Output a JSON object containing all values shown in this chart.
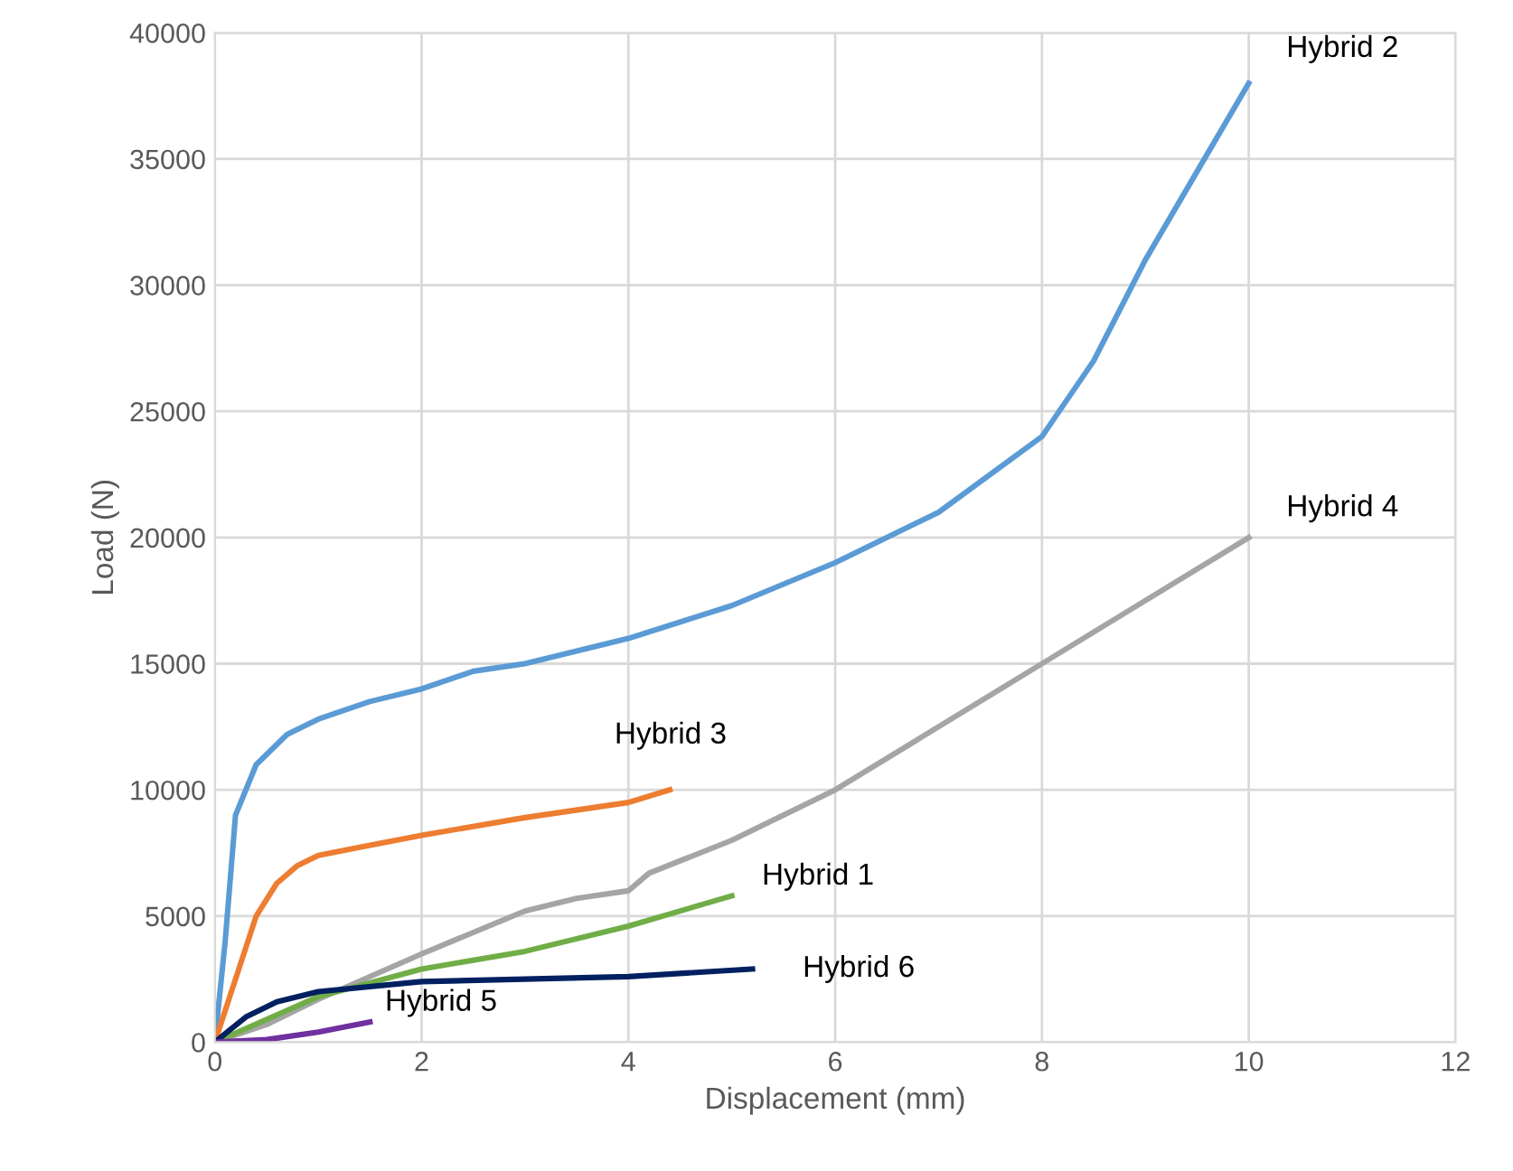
{
  "chart_data": {
    "type": "line",
    "xlabel": "Displacement (mm)",
    "ylabel": "Load (N)",
    "xlim": [
      0,
      12
    ],
    "xticks": [
      0,
      2,
      4,
      6,
      8,
      10,
      12
    ],
    "ylim": [
      0,
      40000
    ],
    "yticks": [
      0,
      5000,
      10000,
      15000,
      20000,
      25000,
      30000,
      35000,
      40000
    ],
    "grid": true,
    "legend": false,
    "marker": "none",
    "line_style": "solid",
    "series": [
      {
        "name": "Hybrid 2",
        "color": "#5b9bd5",
        "x": [
          0,
          0.1,
          0.2,
          0.4,
          0.7,
          1,
          1.5,
          2,
          2.5,
          3,
          4,
          5,
          6,
          7,
          8,
          8.5,
          9,
          9.5,
          10
        ],
        "values": [
          0,
          4000,
          9000,
          11000,
          12200,
          12800,
          13500,
          14000,
          14700,
          15000,
          16000,
          17300,
          19000,
          21000,
          24000,
          27000,
          31000,
          34500,
          38000
        ]
      },
      {
        "name": "Hybrid 4",
        "color": "#a5a5a5",
        "x": [
          0,
          0.5,
          1,
          2,
          3,
          3.5,
          4,
          4.2,
          5,
          6,
          8,
          10
        ],
        "values": [
          0,
          700,
          1700,
          3500,
          5200,
          5700,
          6000,
          6700,
          8000,
          10000,
          15000,
          20000
        ]
      },
      {
        "name": "Hybrid 3",
        "color": "#ed7d31",
        "x": [
          0,
          0.2,
          0.4,
          0.6,
          0.8,
          1,
          1.5,
          2,
          3,
          4,
          4.4
        ],
        "values": [
          0,
          2500,
          5000,
          6300,
          7000,
          7400,
          7800,
          8200,
          8900,
          9500,
          10000
        ]
      },
      {
        "name": "Hybrid 1",
        "color": "#70ad47",
        "x": [
          0,
          1,
          2,
          3,
          4,
          5
        ],
        "values": [
          0,
          1800,
          2900,
          3600,
          4600,
          5800
        ]
      },
      {
        "name": "Hybrid 6",
        "color": "#002060",
        "x": [
          0,
          0.3,
          0.6,
          1,
          2,
          3,
          4,
          5.2
        ],
        "values": [
          0,
          1000,
          1600,
          2000,
          2400,
          2500,
          2600,
          2900
        ]
      },
      {
        "name": "Hybrid 5",
        "color": "#7030a0",
        "x": [
          0,
          0.5,
          1,
          1.5
        ],
        "values": [
          0,
          100,
          400,
          800
        ]
      }
    ]
  }
}
